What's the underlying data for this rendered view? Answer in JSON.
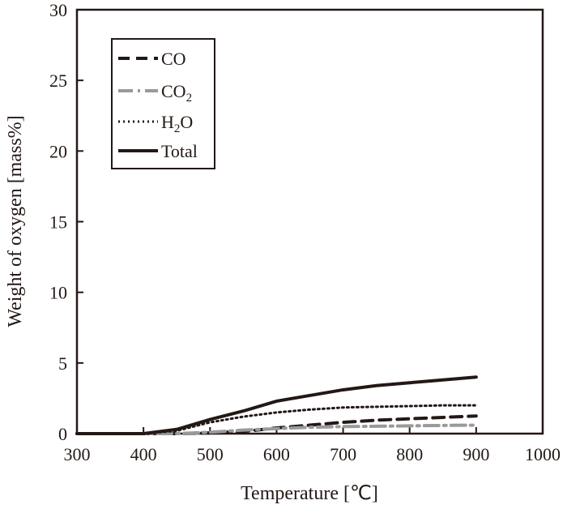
{
  "chart_data": {
    "type": "line",
    "title": "",
    "xlabel": "Temperature [℃]",
    "ylabel": "Weight of oxygen [mass%]",
    "xlim": [
      300,
      1000
    ],
    "ylim": [
      0,
      30
    ],
    "xticks": [
      300,
      400,
      500,
      600,
      700,
      800,
      900,
      1000
    ],
    "yticks": [
      0,
      5,
      10,
      15,
      20,
      25,
      30
    ],
    "grid": false,
    "legend_position": "top-left",
    "x": [
      300,
      350,
      400,
      450,
      500,
      550,
      600,
      650,
      700,
      750,
      800,
      850,
      900
    ],
    "series": [
      {
        "name": "CO",
        "style": "dashed",
        "color": "#231815",
        "values": [
          0,
          0,
          0,
          0,
          0.05,
          0.15,
          0.4,
          0.6,
          0.8,
          0.95,
          1.05,
          1.15,
          1.25
        ]
      },
      {
        "name": "CO2",
        "label_main": "CO",
        "label_sub": "2",
        "style": "dashdot",
        "color": "#9a9a9a",
        "values": [
          0,
          0,
          0,
          0,
          0.1,
          0.25,
          0.35,
          0.45,
          0.5,
          0.52,
          0.55,
          0.58,
          0.6
        ]
      },
      {
        "name": "H2O",
        "label_main": "H",
        "label_sub": "2",
        "label_end": "O",
        "style": "dotted",
        "color": "#231815",
        "values": [
          0,
          0,
          0,
          0.2,
          0.8,
          1.2,
          1.5,
          1.7,
          1.85,
          1.9,
          1.95,
          2.0,
          2.0
        ]
      },
      {
        "name": "Total",
        "style": "solid",
        "color": "#231815",
        "values": [
          0,
          0,
          0,
          0.3,
          1.0,
          1.6,
          2.3,
          2.7,
          3.1,
          3.4,
          3.6,
          3.8,
          4.0
        ]
      }
    ]
  }
}
